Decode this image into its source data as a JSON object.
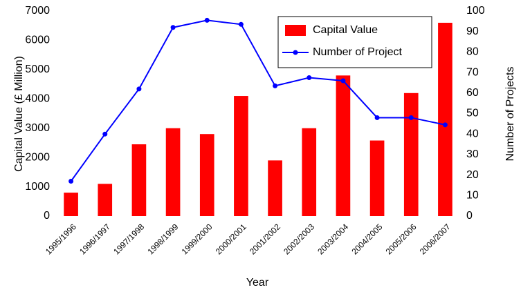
{
  "chart_data": {
    "type": "bar_line",
    "categories": [
      "1995/1996",
      "1996/1997",
      "1997/1998",
      "1998/1999",
      "1999/2000",
      "2000/2001",
      "2001/2002",
      "2002/2003",
      "2003/2004",
      "2004/2005",
      "2005/2006",
      "2006/2007"
    ],
    "series": [
      {
        "name": "Capital Value",
        "type": "bar",
        "color": "#ff0000",
        "values": [
          800,
          1100,
          2450,
          3000,
          2800,
          4100,
          1900,
          3000,
          4800,
          2580,
          4200,
          6600
        ]
      },
      {
        "name": "Number of Project",
        "type": "line",
        "axis": "y2",
        "color": "#0000ff",
        "values": [
          17,
          40,
          62,
          92,
          95.5,
          93.5,
          63.5,
          67.5,
          66,
          48,
          48,
          44.5
        ]
      }
    ],
    "xlabel": "Year",
    "ylabel": "Capital Value (£ Million)",
    "y2label": "Number of Projects",
    "ylim": [
      0,
      7000
    ],
    "yticks": [
      0,
      1000,
      2000,
      3000,
      4000,
      5000,
      6000,
      7000
    ],
    "y2lim": [
      0,
      100
    ],
    "y2ticks": [
      0,
      10,
      20,
      30,
      40,
      50,
      60,
      70,
      80,
      90,
      100
    ],
    "legend": "top-right"
  }
}
